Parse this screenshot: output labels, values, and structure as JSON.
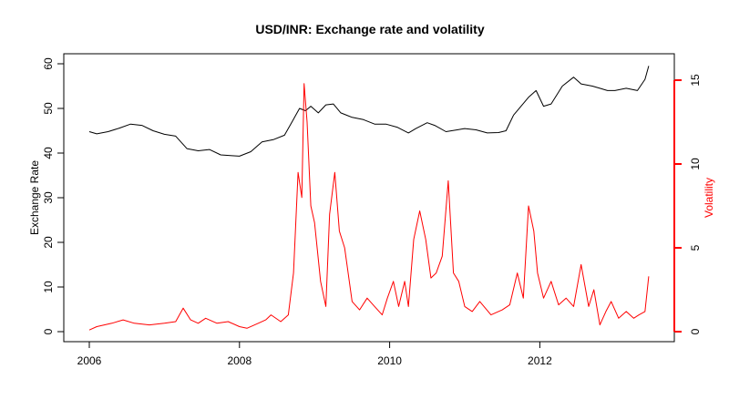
{
  "chart_data": {
    "type": "line",
    "title": "USD/INR: Exchange rate and volatility",
    "xlabel": "",
    "ylabel": "Exchange Rate",
    "ylabel_right": "Volatility",
    "xlim": [
      2006.0,
      2013.5
    ],
    "xticks": [
      2006,
      2008,
      2010,
      2012
    ],
    "ylim": [
      0,
      60
    ],
    "yticks": [
      0,
      10,
      20,
      30,
      40,
      50,
      60
    ],
    "ylim_right": [
      0,
      16
    ],
    "yticks_right": [
      0,
      5,
      10,
      15
    ],
    "grid": false,
    "colors": {
      "exchange": "#000000",
      "volatility": "#ff0000"
    },
    "series": [
      {
        "name": "Exchange Rate",
        "axis": "left",
        "x": [
          2006.0,
          2006.1,
          2006.25,
          2006.4,
          2006.55,
          2006.7,
          2006.85,
          2007.0,
          2007.15,
          2007.3,
          2007.45,
          2007.6,
          2007.75,
          2007.9,
          2008.0,
          2008.15,
          2008.3,
          2008.45,
          2008.6,
          2008.7,
          2008.8,
          2008.88,
          2008.95,
          2009.05,
          2009.15,
          2009.25,
          2009.35,
          2009.5,
          2009.65,
          2009.8,
          2009.95,
          2010.1,
          2010.25,
          2010.35,
          2010.5,
          2010.6,
          2010.75,
          2010.9,
          2011.0,
          2011.15,
          2011.3,
          2011.45,
          2011.55,
          2011.65,
          2011.75,
          2011.85,
          2011.95,
          2012.05,
          2012.15,
          2012.3,
          2012.45,
          2012.55,
          2012.7,
          2012.8,
          2012.9,
          2013.0,
          2013.15,
          2013.3,
          2013.4,
          2013.45
        ],
        "y": [
          44.8,
          44.3,
          44.8,
          45.6,
          46.5,
          46.2,
          45.0,
          44.2,
          43.8,
          41.0,
          40.5,
          40.8,
          39.6,
          39.4,
          39.3,
          40.3,
          42.5,
          43.0,
          44.0,
          47.0,
          50.0,
          49.5,
          50.5,
          49.0,
          50.8,
          51.0,
          49.0,
          48.0,
          47.5,
          46.5,
          46.5,
          45.8,
          44.5,
          45.5,
          46.8,
          46.2,
          44.8,
          45.2,
          45.5,
          45.2,
          44.5,
          44.6,
          45.0,
          48.5,
          50.5,
          52.5,
          54.0,
          50.5,
          51.0,
          55.0,
          57.0,
          55.5,
          55.0,
          54.5,
          54.0,
          54.0,
          54.5,
          54.0,
          56.5,
          59.5
        ]
      },
      {
        "name": "Volatility",
        "axis": "right",
        "x": [
          2006.0,
          2006.1,
          2006.3,
          2006.45,
          2006.6,
          2006.8,
          2007.0,
          2007.15,
          2007.25,
          2007.35,
          2007.45,
          2007.55,
          2007.7,
          2007.85,
          2008.0,
          2008.1,
          2008.25,
          2008.35,
          2008.42,
          2008.55,
          2008.65,
          2008.72,
          2008.78,
          2008.83,
          2008.86,
          2008.9,
          2008.95,
          2009.0,
          2009.08,
          2009.15,
          2009.2,
          2009.27,
          2009.33,
          2009.4,
          2009.5,
          2009.6,
          2009.7,
          2009.8,
          2009.9,
          2009.97,
          2010.05,
          2010.12,
          2010.2,
          2010.25,
          2010.32,
          2010.4,
          2010.48,
          2010.55,
          2010.62,
          2010.7,
          2010.78,
          2010.85,
          2010.92,
          2011.0,
          2011.1,
          2011.2,
          2011.35,
          2011.5,
          2011.6,
          2011.7,
          2011.78,
          2011.85,
          2011.92,
          2011.97,
          2012.05,
          2012.15,
          2012.25,
          2012.35,
          2012.45,
          2012.55,
          2012.65,
          2012.72,
          2012.8,
          2012.88,
          2012.95,
          2013.05,
          2013.15,
          2013.25,
          2013.32,
          2013.4,
          2013.45
        ],
        "y": [
          0.1,
          0.3,
          0.5,
          0.7,
          0.5,
          0.4,
          0.5,
          0.6,
          1.4,
          0.7,
          0.5,
          0.8,
          0.5,
          0.6,
          0.3,
          0.2,
          0.5,
          0.7,
          1.0,
          0.6,
          1.0,
          3.5,
          9.5,
          8.0,
          14.8,
          12.5,
          7.5,
          6.5,
          3.0,
          1.5,
          7.0,
          9.5,
          6.0,
          5.0,
          1.8,
          1.3,
          2.0,
          1.5,
          1.0,
          2.0,
          3.0,
          1.5,
          3.0,
          1.5,
          5.5,
          7.2,
          5.5,
          3.2,
          3.5,
          4.5,
          9.0,
          3.5,
          3.0,
          1.5,
          1.2,
          1.8,
          1.0,
          1.3,
          1.6,
          3.5,
          2.0,
          7.5,
          6.0,
          3.5,
          2.0,
          3.0,
          1.6,
          2.0,
          1.5,
          4.0,
          1.5,
          2.5,
          0.4,
          1.2,
          1.8,
          0.8,
          1.2,
          0.8,
          1.0,
          1.2,
          3.3
        ]
      }
    ]
  }
}
